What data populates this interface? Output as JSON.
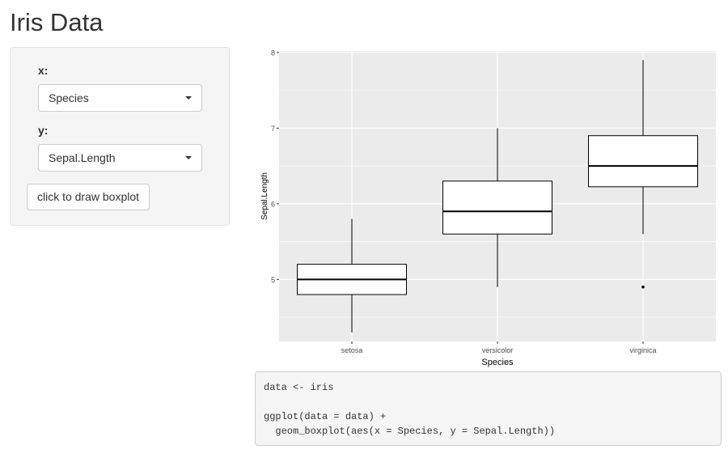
{
  "page": {
    "title": "Iris Data"
  },
  "sidebar": {
    "x": {
      "label": "x:",
      "selected": "Species"
    },
    "y": {
      "label": "y:",
      "selected": "Sepal.Length"
    },
    "draw_button": "click to draw boxplot"
  },
  "code": {
    "text": "data <- iris\n\nggplot(data = data) +\n  geom_boxplot(aes(x = Species, y = Sepal.Length))"
  },
  "colors": {
    "panel_background": "#ebebeb",
    "grid": "#ffffff",
    "box_fill": "#ffffff",
    "box_line": "#000000"
  },
  "chart_data": {
    "type": "boxplot",
    "title": "",
    "xlabel": "Species",
    "ylabel": "Sepal.Length",
    "categories": [
      "setosa",
      "versicolor",
      "virginica"
    ],
    "boxes": [
      {
        "category": "setosa",
        "min": 4.3,
        "q1": 4.8,
        "median": 5.0,
        "q3": 5.2,
        "max": 5.8,
        "outliers": []
      },
      {
        "category": "versicolor",
        "min": 4.9,
        "q1": 5.6,
        "median": 5.9,
        "q3": 6.3,
        "max": 7.0,
        "outliers": []
      },
      {
        "category": "virginica",
        "min": 5.6,
        "q1": 6.225,
        "median": 6.5,
        "q3": 6.9,
        "max": 7.9,
        "outliers": [
          4.9
        ]
      }
    ],
    "yticks": [
      "5",
      "6",
      "7",
      "8"
    ],
    "ylim": [
      4.18,
      8.02
    ],
    "grid": true,
    "legend": "none"
  }
}
